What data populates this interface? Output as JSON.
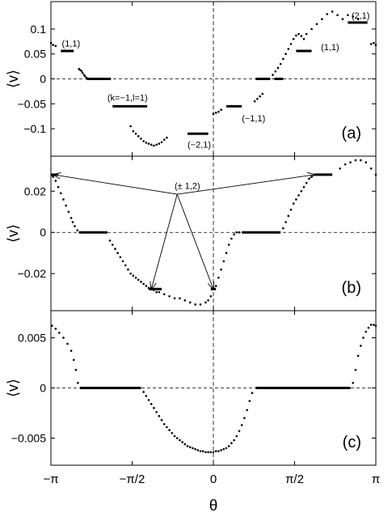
{
  "x_axis": {
    "label": "θ",
    "range": [
      -3.14159,
      3.14159
    ],
    "ticks": [
      {
        "value": -3.14159,
        "label": "−π"
      },
      {
        "value": -1.5708,
        "label": "−π/2"
      },
      {
        "value": 0,
        "label": "0"
      },
      {
        "value": 1.5708,
        "label": "π/2"
      },
      {
        "value": 3.14159,
        "label": "π"
      }
    ]
  },
  "chart_data": [
    {
      "type": "scatter",
      "panel_label": "(a)",
      "ylabel": "⟨v⟩",
      "ylim": [
        -0.155,
        0.155
      ],
      "yticks": [
        {
          "value": 0.1,
          "label": "0.1"
        },
        {
          "value": 0.05,
          "label": "0.05"
        },
        {
          "value": 0,
          "label": "0"
        },
        {
          "value": -0.05,
          "label": "−0.05"
        },
        {
          "value": -0.1,
          "label": "−0.1"
        }
      ],
      "points": {
        "x": [
          -3.14,
          -3.1,
          -3.05,
          -2.6,
          -2.58,
          -2.55,
          -2.53,
          -2.5,
          -2.48,
          -2.45,
          -1.6,
          -1.55,
          -1.5,
          -1.45,
          -1.4,
          -1.35,
          -1.3,
          -1.25,
          -1.2,
          -1.15,
          -1.1,
          -1.05,
          -1.0,
          -0.95,
          -0.9,
          0.0,
          0.05,
          0.1,
          0.15,
          0.8,
          0.85,
          0.9,
          0.95,
          1.15,
          1.2,
          1.25,
          1.3,
          1.35,
          1.4,
          1.45,
          1.5,
          1.55,
          1.6,
          1.65,
          1.7,
          1.75,
          1.8,
          1.9,
          2.0,
          2.1,
          2.2,
          2.3,
          2.4,
          2.5,
          2.6,
          2.7,
          2.8,
          3.05,
          3.1,
          3.14
        ],
        "y": [
          0.072,
          0.068,
          0.066,
          0.02,
          0.018,
          0.016,
          0.012,
          0.008,
          0.005,
          0.002,
          -0.095,
          -0.105,
          -0.11,
          -0.115,
          -0.12,
          -0.125,
          -0.128,
          -0.13,
          -0.132,
          -0.134,
          -0.132,
          -0.13,
          -0.127,
          -0.122,
          -0.118,
          -0.07,
          -0.068,
          -0.066,
          -0.062,
          -0.045,
          -0.04,
          -0.035,
          -0.03,
          0.008,
          0.015,
          0.022,
          0.03,
          0.04,
          0.05,
          0.06,
          0.07,
          0.08,
          0.087,
          0.09,
          0.086,
          0.08,
          0.09,
          0.1,
          0.11,
          0.12,
          0.13,
          0.135,
          0.128,
          0.12,
          0.128,
          0.125,
          0.12,
          0.07,
          0.072,
          0.068
        ]
      },
      "plateaus": [
        {
          "x0": -2.95,
          "x1": -2.7,
          "y": 0.056
        },
        {
          "x0": -2.45,
          "x1": -1.98,
          "y": 0
        },
        {
          "x0": -1.95,
          "x1": -1.28,
          "y": -0.055
        },
        {
          "x0": -0.5,
          "x1": -0.1,
          "y": -0.11
        },
        {
          "x0": 0.25,
          "x1": 0.55,
          "y": -0.055
        },
        {
          "x0": 0.82,
          "x1": 1.1,
          "y": 0
        },
        {
          "x0": 1.18,
          "x1": 1.35,
          "y": 0
        },
        {
          "x0": 1.6,
          "x1": 1.9,
          "y": 0.056
        },
        {
          "x0": 2.6,
          "x1": 2.98,
          "y": 0.113
        }
      ],
      "annotations": [
        {
          "text": "(1,1)",
          "x": -2.93,
          "y": 0.065
        },
        {
          "text": "(k=−1,l=1)",
          "x": -2.05,
          "y": -0.044
        },
        {
          "text": "(−2,1)",
          "x": -0.5,
          "y": -0.138
        },
        {
          "text": "(−1,1)",
          "x": 0.55,
          "y": -0.085
        },
        {
          "text": "(1,1)",
          "x": 2.08,
          "y": 0.058
        },
        {
          "text": "(2,1)",
          "x": 2.67,
          "y": 0.121
        }
      ]
    },
    {
      "type": "scatter",
      "panel_label": "(b)",
      "ylabel": "⟨v⟩",
      "ylim": [
        -0.038,
        0.037
      ],
      "yticks": [
        {
          "value": 0.02,
          "label": "0.02"
        },
        {
          "value": 0,
          "label": "0"
        },
        {
          "value": -0.02,
          "label": "−0.02"
        }
      ],
      "points": {
        "x": [
          -3.1,
          -3.05,
          -3.0,
          -2.95,
          -2.9,
          -2.85,
          -2.8,
          -2.75,
          -2.72,
          -2.68,
          -2.63,
          -2.58,
          -2.0,
          -1.95,
          -1.9,
          -1.85,
          -1.8,
          -1.75,
          -1.7,
          -1.65,
          -1.6,
          -1.55,
          -1.5,
          -1.45,
          -1.4,
          -1.35,
          -1.3,
          -1.25,
          -1.2,
          -1.15,
          -1.1,
          -1.05,
          -0.95,
          -0.85,
          -0.75,
          -0.65,
          -0.55,
          -0.45,
          -0.35,
          -0.25,
          -0.15,
          -0.1,
          -0.05,
          0.05,
          0.1,
          0.15,
          0.2,
          0.25,
          0.3,
          0.35,
          0.4,
          0.45,
          0.5,
          1.35,
          1.4,
          1.45,
          1.5,
          1.55,
          1.6,
          1.65,
          1.7,
          1.75,
          1.8,
          1.85,
          1.9,
          2.45,
          2.55,
          2.65,
          2.75,
          2.85,
          2.95,
          3.05,
          3.14
        ],
        "y": [
          0.027,
          0.025,
          0.022,
          0.019,
          0.016,
          0.013,
          0.01,
          0.007,
          0.005,
          0.003,
          0.001,
          0.0,
          -0.004,
          -0.006,
          -0.008,
          -0.01,
          -0.012,
          -0.014,
          -0.016,
          -0.018,
          -0.02,
          -0.021,
          -0.022,
          -0.023,
          -0.024,
          -0.025,
          -0.026,
          -0.027,
          -0.027,
          -0.028,
          -0.029,
          -0.029,
          -0.03,
          -0.031,
          -0.032,
          -0.032,
          -0.033,
          -0.034,
          -0.035,
          -0.035,
          -0.034,
          -0.033,
          -0.031,
          -0.026,
          -0.022,
          -0.018,
          -0.014,
          -0.01,
          -0.006,
          -0.003,
          -0.001,
          0.0,
          0.0,
          0.002,
          0.005,
          0.008,
          0.011,
          0.014,
          0.016,
          0.018,
          0.02,
          0.022,
          0.024,
          0.026,
          0.027,
          0.031,
          0.033,
          0.034,
          0.035,
          0.035,
          0.034,
          0.031,
          0.028
        ]
      },
      "plateaus": [
        {
          "x0": -3.14,
          "x1": -3.0,
          "y": 0.028
        },
        {
          "x0": -2.6,
          "x1": -2.05,
          "y": 0
        },
        {
          "x0": -1.25,
          "x1": -1.0,
          "y": -0.0275
        },
        {
          "x0": -0.05,
          "x1": 0.05,
          "y": -0.0275
        },
        {
          "x0": 0.55,
          "x1": 1.3,
          "y": 0
        },
        {
          "x0": 1.95,
          "x1": 2.3,
          "y": 0.028
        }
      ],
      "annotations": [
        {
          "text": "(± 1,2)",
          "x": -0.75,
          "y": 0.021
        }
      ],
      "arrows": [
        {
          "from": [
            -0.7,
            0.0185
          ],
          "to": [
            -3.09,
            0.028
          ]
        },
        {
          "from": [
            -0.7,
            0.0185
          ],
          "to": [
            1.96,
            0.028
          ]
        },
        {
          "from": [
            -0.7,
            0.0185
          ],
          "to": [
            -1.2,
            -0.0275
          ]
        },
        {
          "from": [
            -0.7,
            0.0185
          ],
          "to": [
            0.0,
            -0.0275
          ]
        }
      ]
    },
    {
      "type": "scatter",
      "panel_label": "(c)",
      "ylabel": "⟨v⟩",
      "ylim": [
        -0.0077,
        0.0077
      ],
      "yticks": [
        {
          "value": 0.005,
          "label": "0.005"
        },
        {
          "value": 0,
          "label": "0"
        },
        {
          "value": -0.005,
          "label": "−0.005"
        }
      ],
      "points": {
        "x": [
          -3.12,
          -3.05,
          -2.98,
          -2.9,
          -2.82,
          -2.75,
          -2.7,
          -2.66,
          -2.62,
          -1.35,
          -1.3,
          -1.25,
          -1.2,
          -1.15,
          -1.1,
          -1.05,
          -1.0,
          -0.95,
          -0.9,
          -0.85,
          -0.8,
          -0.75,
          -0.7,
          -0.65,
          -0.6,
          -0.55,
          -0.5,
          -0.45,
          -0.4,
          -0.35,
          -0.3,
          -0.25,
          -0.2,
          -0.15,
          -0.1,
          -0.05,
          0.0,
          0.05,
          0.1,
          0.15,
          0.2,
          0.25,
          0.3,
          0.35,
          0.4,
          0.45,
          0.5,
          0.55,
          0.6,
          0.65,
          0.7,
          0.75,
          2.7,
          2.75,
          2.8,
          2.85,
          2.9,
          2.95,
          3.0,
          3.05,
          3.1,
          3.14
        ],
        "y": [
          0.0062,
          0.0059,
          0.0055,
          0.005,
          0.0044,
          0.0037,
          0.0028,
          0.0018,
          0.0005,
          -0.0004,
          -0.0008,
          -0.0012,
          -0.0016,
          -0.002,
          -0.0024,
          -0.0028,
          -0.0032,
          -0.0036,
          -0.0039,
          -0.0042,
          -0.0045,
          -0.0048,
          -0.005,
          -0.0052,
          -0.0054,
          -0.0056,
          -0.0058,
          -0.0059,
          -0.006,
          -0.0061,
          -0.0062,
          -0.0063,
          -0.0063,
          -0.0064,
          -0.0064,
          -0.0064,
          -0.0064,
          -0.0063,
          -0.0063,
          -0.0062,
          -0.0061,
          -0.006,
          -0.0058,
          -0.0055,
          -0.0052,
          -0.0048,
          -0.0043,
          -0.0037,
          -0.003,
          -0.0022,
          -0.0013,
          -0.0005,
          0.0005,
          0.0018,
          0.0032,
          0.0042,
          0.005,
          0.0056,
          0.006,
          0.0063,
          0.0063,
          0.0062
        ]
      },
      "plateaus": [
        {
          "x0": -2.58,
          "x1": -1.4,
          "y": 0
        },
        {
          "x0": 0.82,
          "x1": 2.65,
          "y": 0
        }
      ],
      "annotations": []
    }
  ]
}
